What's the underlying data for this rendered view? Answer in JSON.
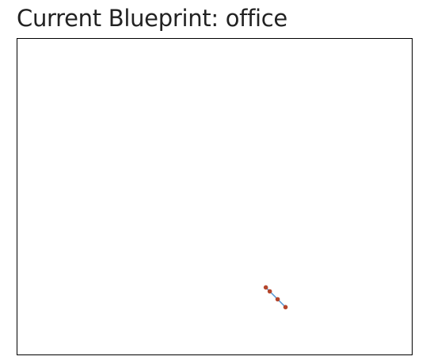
{
  "header": {
    "title": "Current Blueprint: office"
  },
  "blueprint": {
    "edge_color": "#5b9bd5",
    "node_color": "#b5462c",
    "node_count": 4,
    "edge_count": 3
  }
}
